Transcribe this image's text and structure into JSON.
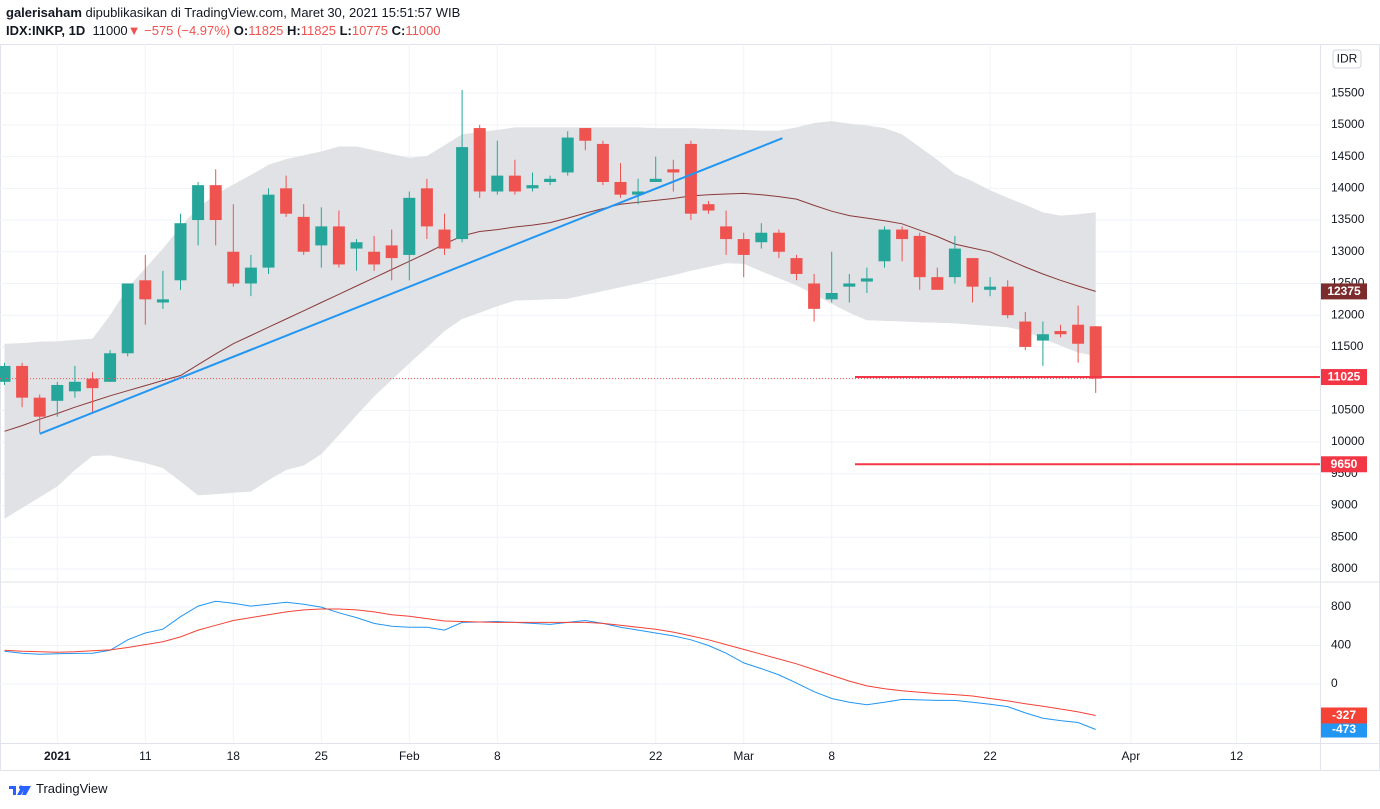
{
  "header": {
    "author": "galerisaham",
    "published": "dipublikasikan di TradingView.com, Maret 30, 2021 15:51:57 WIB",
    "symbol": "IDX:INKP, 1D",
    "change": "▼ −575 (−4.97%)",
    "ohlc_labels": [
      "O:",
      "H:",
      "L:",
      "C:"
    ],
    "currency": "IDR",
    "brand": "TradingView"
  },
  "chart_data": [
    {
      "type": "candlestick",
      "categories": [
        null,
        null,
        null,
        "2021",
        null,
        null,
        null,
        null,
        "11",
        null,
        null,
        null,
        null,
        "18",
        null,
        null,
        null,
        null,
        "25",
        null,
        null,
        null,
        null,
        "Feb",
        null,
        null,
        null,
        null,
        "8",
        null,
        null,
        null,
        null,
        null,
        null,
        null,
        null,
        "22",
        null,
        null,
        null,
        null,
        "Mar",
        null,
        null,
        null,
        null,
        "8",
        null,
        null,
        null,
        null,
        null,
        null,
        null,
        null,
        "22",
        null,
        null,
        null,
        null,
        null,
        null,
        null,
        "Apr",
        null,
        null,
        null,
        null,
        null,
        "12",
        null,
        null,
        null,
        null
      ],
      "open": [
        10950,
        11200,
        10700,
        10650,
        10800,
        11000,
        10950,
        11400,
        12550,
        12200,
        12550,
        13500,
        14050,
        13000,
        12500,
        12750,
        14000,
        13550,
        13100,
        13400,
        13050,
        13000,
        13100,
        12950,
        14000,
        13350,
        13200,
        14950,
        13950,
        14200,
        14000,
        14100,
        14250,
        14950,
        14700,
        14100,
        13900,
        14100,
        14300,
        14700,
        13750,
        13400,
        13200,
        13150,
        13300,
        12900,
        12500,
        12250,
        12450,
        12530,
        12850,
        13350,
        13250,
        12600,
        12600,
        12900,
        12400,
        12450,
        11900,
        11600,
        11750,
        11850,
        11825,
        null,
        null,
        null,
        null,
        null,
        null,
        null,
        null,
        null,
        null,
        null,
        null
      ],
      "high": [
        11250,
        11250,
        10750,
        10950,
        11200,
        11100,
        11450,
        12500,
        12950,
        12700,
        13600,
        14100,
        14300,
        13750,
        12950,
        14000,
        14200,
        13750,
        13700,
        13650,
        13200,
        13250,
        13350,
        13950,
        14150,
        13600,
        15550,
        15000,
        14750,
        14450,
        14250,
        14200,
        14900,
        14950,
        14750,
        14400,
        14150,
        14500,
        14450,
        14750,
        13800,
        13650,
        13300,
        13450,
        13350,
        12950,
        12650,
        13000,
        12650,
        12750,
        13400,
        13400,
        13300,
        12750,
        13250,
        12900,
        12600,
        12550,
        12050,
        11900,
        11850,
        12150,
        11825,
        null,
        null,
        null,
        null,
        null,
        null,
        null,
        null,
        null,
        null,
        null,
        null
      ],
      "low": [
        10900,
        10550,
        10150,
        10400,
        10700,
        10450,
        10950,
        11350,
        11850,
        12100,
        12400,
        13100,
        13100,
        12450,
        12300,
        12650,
        13550,
        12950,
        12750,
        12750,
        12700,
        12700,
        12550,
        12550,
        13200,
        12950,
        13150,
        13850,
        13900,
        13900,
        13950,
        14050,
        14200,
        14600,
        14050,
        13850,
        13750,
        14100,
        13950,
        13500,
        13600,
        12950,
        12600,
        13050,
        12900,
        12550,
        11900,
        12200,
        12200,
        12350,
        12750,
        12850,
        12400,
        12400,
        12500,
        12200,
        12300,
        11950,
        11450,
        11200,
        11650,
        11250,
        10775,
        null,
        null,
        null,
        null,
        null,
        null,
        null,
        null,
        null,
        null,
        null,
        null
      ],
      "close": [
        11200,
        10700,
        10400,
        10900,
        10950,
        10850,
        11400,
        12500,
        12250,
        12250,
        13450,
        14050,
        13500,
        12500,
        12750,
        13900,
        13600,
        13000,
        13400,
        12800,
        13150,
        12800,
        12900,
        13850,
        13400,
        13050,
        14650,
        13950,
        14200,
        13950,
        14050,
        14150,
        14800,
        14750,
        14100,
        13900,
        13950,
        14150,
        14250,
        13600,
        13650,
        13200,
        12950,
        13300,
        13000,
        12650,
        12100,
        12350,
        12500,
        12580,
        13350,
        13200,
        12600,
        12400,
        13050,
        12450,
        12450,
        12000,
        11500,
        11700,
        11700,
        11550,
        11000,
        null,
        null,
        null,
        null,
        null,
        null,
        null,
        null,
        null,
        null,
        null,
        null
      ],
      "up_color": "#26a69a",
      "down_color": "#ef5350",
      "bands": {
        "color": "#dcdde1",
        "upper": [
          11550,
          11560,
          11580,
          11590,
          11610,
          11630,
          12000,
          12430,
          12740,
          13050,
          13390,
          13700,
          13900,
          14060,
          14210,
          14370,
          14460,
          14520,
          14580,
          14660,
          14660,
          14600,
          14540,
          14480,
          14510,
          14680,
          14850,
          14890,
          14920,
          14960,
          14960,
          14960,
          14960,
          14960,
          14960,
          14960,
          14960,
          14950,
          14950,
          14950,
          14940,
          14930,
          14920,
          14910,
          14910,
          14960,
          15030,
          15060,
          15020,
          14990,
          14950,
          14850,
          14650,
          14450,
          14230,
          14110,
          13970,
          13850,
          13740,
          13620,
          13570,
          13590,
          13620,
          null,
          null,
          null,
          null,
          null,
          null,
          null,
          null,
          null,
          null,
          null,
          null
        ],
        "lower": [
          8790,
          8960,
          9130,
          9300,
          9560,
          9780,
          9790,
          9730,
          9670,
          9590,
          9380,
          9160,
          9180,
          9200,
          9220,
          9400,
          9560,
          9630,
          9810,
          10110,
          10420,
          10720,
          10980,
          11240,
          11490,
          11750,
          11940,
          12040,
          12140,
          12230,
          12240,
          12250,
          12260,
          12320,
          12380,
          12440,
          12500,
          12570,
          12630,
          12700,
          12760,
          12820,
          12810,
          12690,
          12580,
          12470,
          12330,
          12180,
          12040,
          11920,
          11910,
          11900,
          11890,
          11880,
          11870,
          11850,
          11830,
          11810,
          11750,
          11630,
          11520,
          11410,
          11360,
          null,
          null,
          null,
          null,
          null,
          null,
          null,
          null,
          null,
          null,
          null,
          null
        ]
      },
      "ma": {
        "color": "#8a3a3a",
        "tag_color": "#7b2c2c",
        "values": [
          10170,
          10260,
          10360,
          10450,
          10550,
          10640,
          10730,
          10810,
          10890,
          10970,
          11050,
          11220,
          11390,
          11550,
          11680,
          11810,
          11940,
          12070,
          12200,
          12330,
          12460,
          12590,
          12720,
          12850,
          12980,
          13120,
          13250,
          13320,
          13350,
          13390,
          13420,
          13460,
          13530,
          13610,
          13680,
          13750,
          13780,
          13810,
          13840,
          13880,
          13900,
          13910,
          13920,
          13900,
          13870,
          13830,
          13730,
          13640,
          13570,
          13530,
          13490,
          13440,
          13340,
          13240,
          13120,
          13060,
          13000,
          12880,
          12760,
          12650,
          12550,
          12460,
          12375,
          null,
          null,
          null,
          null,
          null,
          null,
          null,
          null,
          null,
          null,
          null,
          null
        ]
      },
      "trend_line": {
        "values": [
          10130,
          14790
        ],
        "color": "#2196f3"
      },
      "levels": {
        "values": [
          11025,
          9650
        ],
        "color": "#f23645"
      },
      "ylim": [
        7810,
        16275
      ],
      "yticks": [
        8000,
        8500,
        9000,
        9500,
        10000,
        10500,
        11000,
        11500,
        12000,
        12500,
        13000,
        13500,
        14000,
        14500,
        15000,
        15500
      ],
      "grid": true
    },
    {
      "type": "line",
      "series": [
        {
          "color": "#2196f3",
          "values": [
            340,
            320,
            310,
            315,
            318,
            320,
            350,
            460,
            530,
            570,
            700,
            810,
            860,
            840,
            810,
            830,
            850,
            830,
            800,
            740,
            690,
            630,
            600,
            590,
            590,
            560,
            640,
            645,
            650,
            640,
            630,
            620,
            640,
            660,
            630,
            590,
            560,
            530,
            500,
            460,
            400,
            320,
            220,
            160,
            95,
            10,
            -80,
            -150,
            -190,
            -215,
            -190,
            -160,
            -165,
            -170,
            -170,
            -190,
            -210,
            -235,
            -300,
            -355,
            -380,
            -400,
            -473,
            null,
            null,
            null,
            null,
            null,
            null,
            null,
            null,
            null,
            null,
            null,
            null
          ]
        },
        {
          "color": "#f44336",
          "values": [
            350,
            340,
            335,
            330,
            335,
            345,
            355,
            380,
            410,
            440,
            490,
            560,
            610,
            660,
            690,
            720,
            750,
            770,
            780,
            780,
            770,
            750,
            720,
            705,
            680,
            655,
            650,
            645,
            640,
            640,
            640,
            640,
            640,
            640,
            630,
            610,
            590,
            570,
            540,
            500,
            460,
            410,
            360,
            310,
            260,
            210,
            150,
            90,
            30,
            -20,
            -50,
            -70,
            -85,
            -100,
            -110,
            -125,
            -150,
            -175,
            -205,
            -230,
            -260,
            -290,
            -327,
            null,
            null,
            null,
            null,
            null,
            null,
            null,
            null,
            null,
            null,
            null,
            null
          ]
        }
      ],
      "ylim": [
        -613,
        1050
      ],
      "yticks": [
        0,
        400,
        800
      ],
      "grid": true
    }
  ]
}
